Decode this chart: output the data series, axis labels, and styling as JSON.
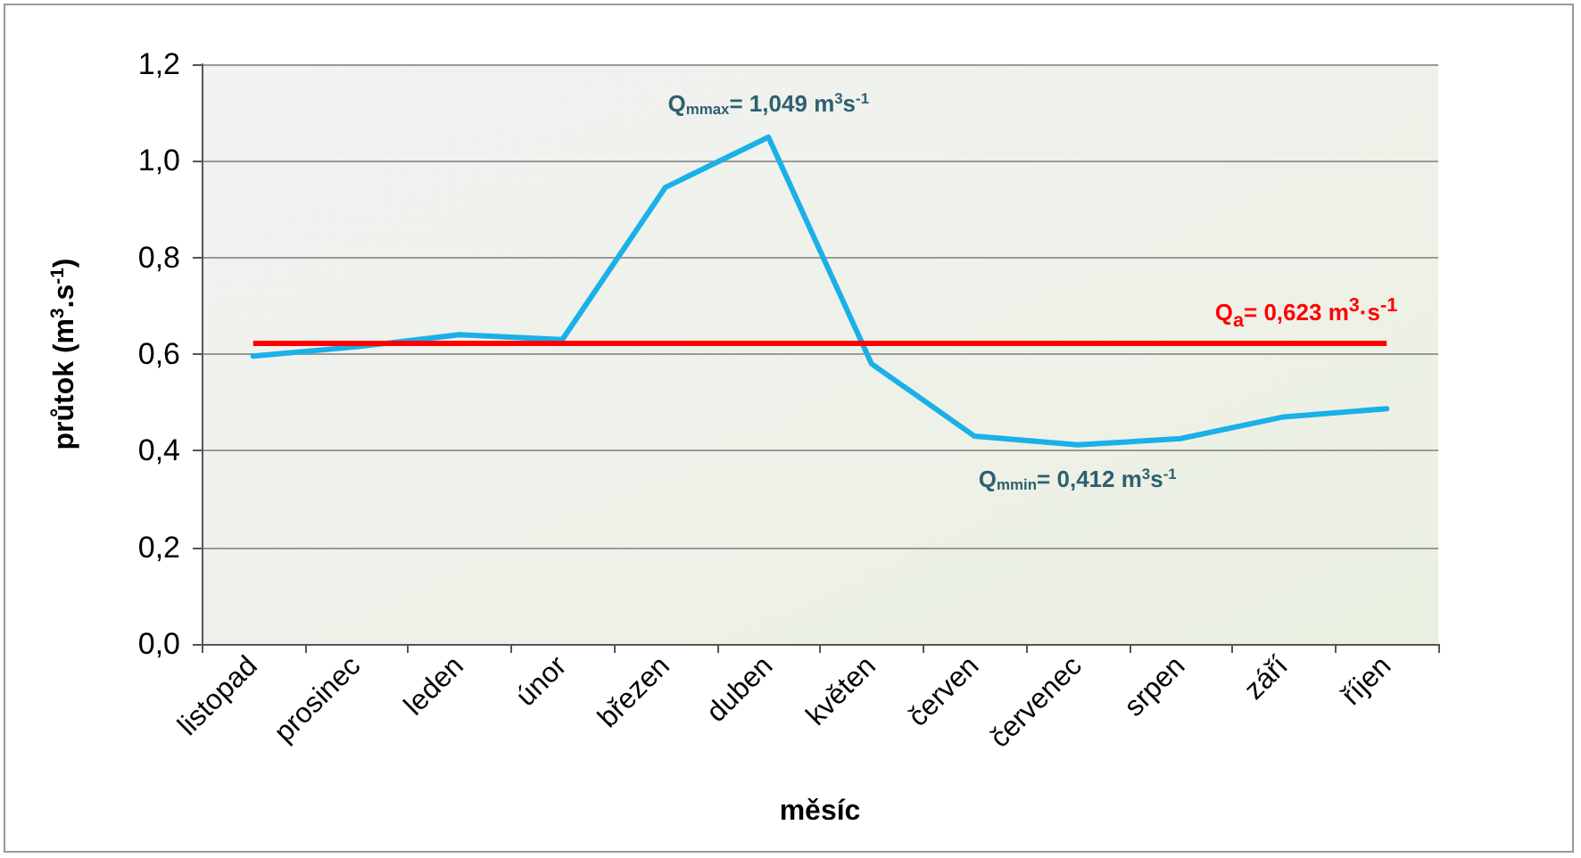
{
  "chart_data": {
    "type": "line",
    "xlabel": "měsíc",
    "ylabel": "průtok (m$^{3}$.s$^{-1}$)",
    "categories": [
      "listopad",
      "prosinec",
      "leden",
      "únor",
      "březen",
      "duben",
      "květen",
      "červen",
      "červenec",
      "srpen",
      "září",
      "říjen"
    ],
    "series": [
      {
        "color": "#1ab0e8",
        "values": [
          0.596,
          0.615,
          0.64,
          0.63,
          0.945,
          1.049,
          0.58,
          0.43,
          0.412,
          0.425,
          0.47,
          0.487
        ]
      }
    ],
    "ylim": [
      0,
      1.2
    ],
    "yticks": [
      {
        "value": 0,
        "label": "0,0"
      },
      {
        "value": 0.2,
        "label": "0,2"
      },
      {
        "value": 0.4,
        "label": "0,4"
      },
      {
        "value": 0.6,
        "label": "0,6"
      },
      {
        "value": 0.8,
        "label": "0,8"
      },
      {
        "value": 1.0,
        "label": "1,0"
      },
      {
        "value": 1.2,
        "label": "1,2"
      }
    ],
    "ref_lines": [
      {
        "axis": "y",
        "value": 0.623,
        "label": "Q$_{a}$= 0,623 m$^{3}$·s$^{-1}$",
        "color": "#ff0000"
      }
    ],
    "annotations": [
      {
        "text": "Q$_{mmax}$= 1,049 m$^{3}$s$^{-1}$",
        "x": "duben",
        "y": 1.049
      },
      {
        "text": "Q$_{mmin}$= 0,412 m$^{3}$s$^{-1}$",
        "x": "červenec",
        "y": 0.412
      }
    ],
    "grid": "y",
    "marker": "none",
    "line_style": "solid"
  }
}
